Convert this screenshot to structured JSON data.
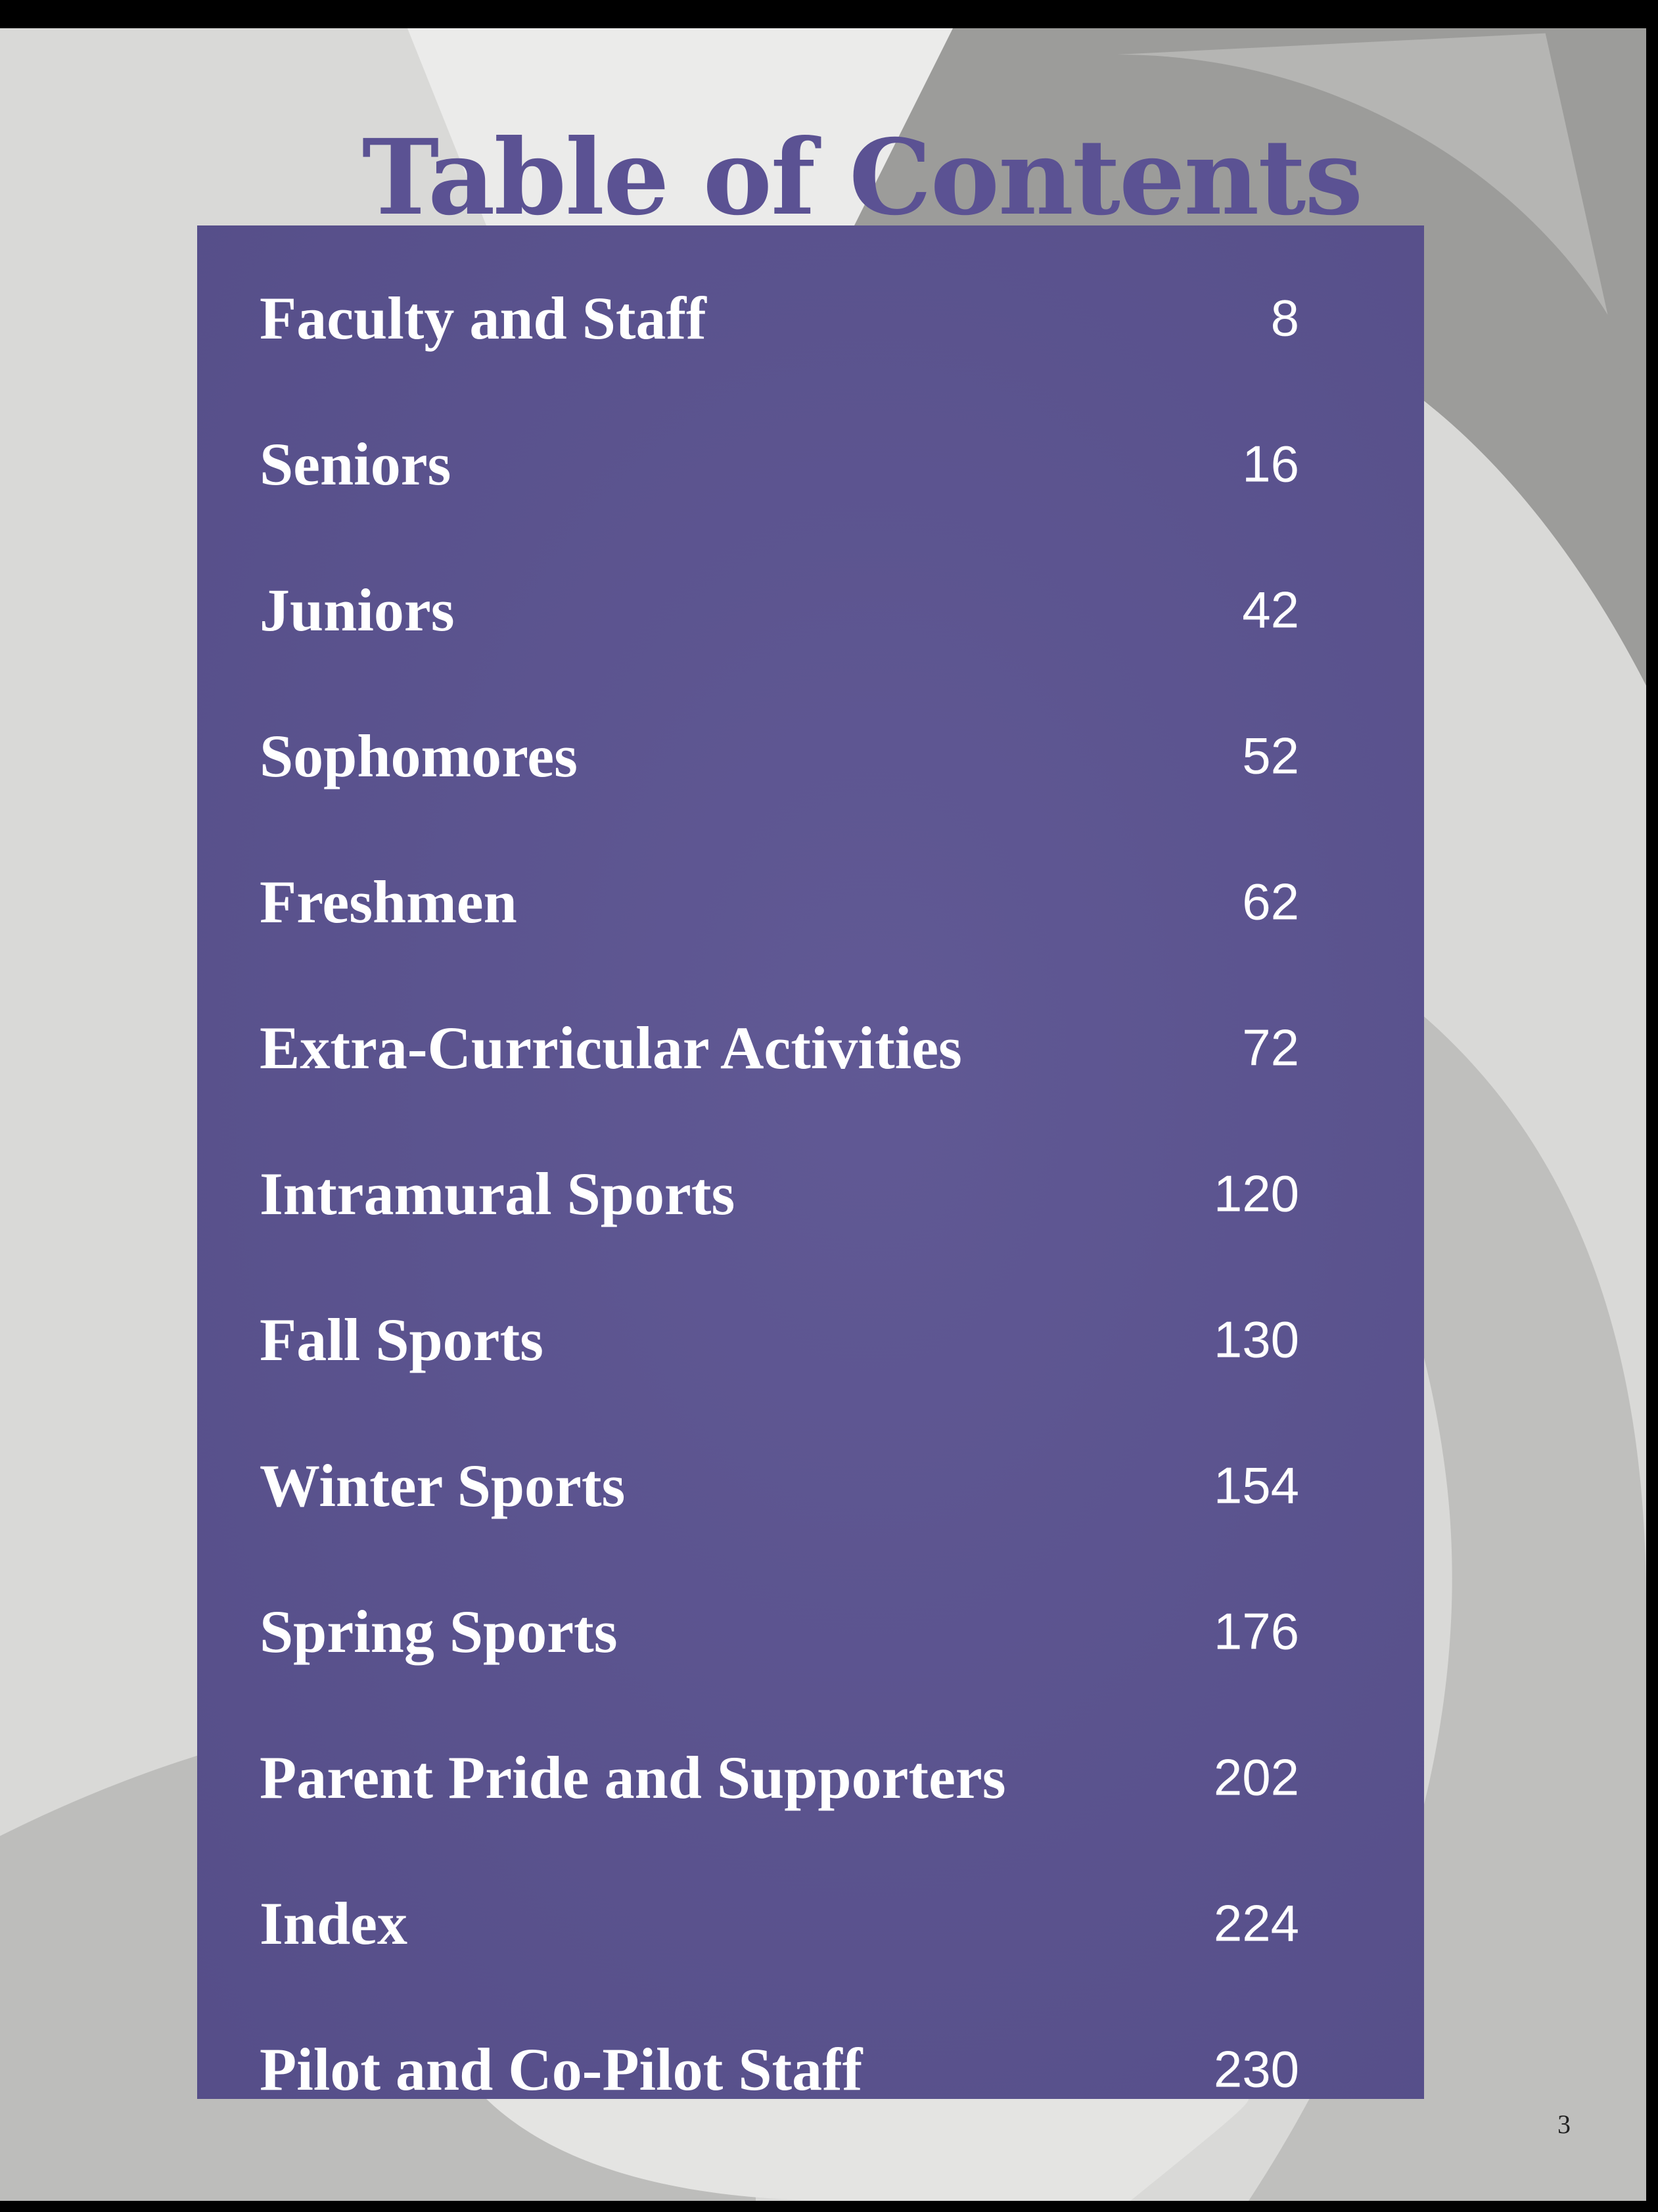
{
  "title": "Table of Contents",
  "entries": [
    {
      "label": "Faculty and Staff",
      "page": "8"
    },
    {
      "label": "Seniors",
      "page": "16"
    },
    {
      "label": "Juniors",
      "page": "42"
    },
    {
      "label": "Sophomores",
      "page": "52"
    },
    {
      "label": "Freshmen",
      "page": "62"
    },
    {
      "label": "Extra-Curricular Activities",
      "page": "72"
    },
    {
      "label": "Intramural Sports",
      "page": "120"
    },
    {
      "label": "Fall Sports",
      "page": "130"
    },
    {
      "label": "Winter Sports",
      "page": "154"
    },
    {
      "label": "Spring Sports",
      "page": "176"
    },
    {
      "label": "Parent Pride and Supporters",
      "page": "202"
    },
    {
      "label": "Index",
      "page": "224"
    },
    {
      "label": "Pilot and Co-Pilot Staff",
      "page": "230"
    }
  ],
  "page_number": "3",
  "colors": {
    "accent": "#5a5290",
    "title": "#5b5293",
    "background": "#d6d6d4"
  }
}
